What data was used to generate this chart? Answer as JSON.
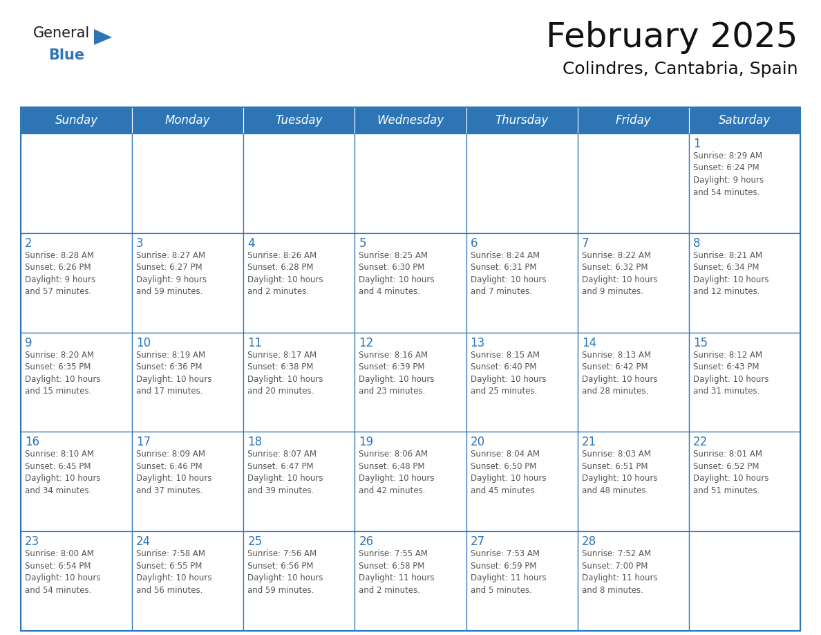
{
  "title": "February 2025",
  "subtitle": "Colindres, Cantabria, Spain",
  "header_bg": "#2E75B6",
  "header_text_color": "#FFFFFF",
  "cell_bg": "#FFFFFF",
  "cell_border_color": "#2E75B6",
  "day_number_color": "#2E75B6",
  "info_text_color": "#555555",
  "days_of_week": [
    "Sunday",
    "Monday",
    "Tuesday",
    "Wednesday",
    "Thursday",
    "Friday",
    "Saturday"
  ],
  "weeks": [
    [
      {
        "day": "",
        "info": ""
      },
      {
        "day": "",
        "info": ""
      },
      {
        "day": "",
        "info": ""
      },
      {
        "day": "",
        "info": ""
      },
      {
        "day": "",
        "info": ""
      },
      {
        "day": "",
        "info": ""
      },
      {
        "day": "1",
        "info": "Sunrise: 8:29 AM\nSunset: 6:24 PM\nDaylight: 9 hours\nand 54 minutes."
      }
    ],
    [
      {
        "day": "2",
        "info": "Sunrise: 8:28 AM\nSunset: 6:26 PM\nDaylight: 9 hours\nand 57 minutes."
      },
      {
        "day": "3",
        "info": "Sunrise: 8:27 AM\nSunset: 6:27 PM\nDaylight: 9 hours\nand 59 minutes."
      },
      {
        "day": "4",
        "info": "Sunrise: 8:26 AM\nSunset: 6:28 PM\nDaylight: 10 hours\nand 2 minutes."
      },
      {
        "day": "5",
        "info": "Sunrise: 8:25 AM\nSunset: 6:30 PM\nDaylight: 10 hours\nand 4 minutes."
      },
      {
        "day": "6",
        "info": "Sunrise: 8:24 AM\nSunset: 6:31 PM\nDaylight: 10 hours\nand 7 minutes."
      },
      {
        "day": "7",
        "info": "Sunrise: 8:22 AM\nSunset: 6:32 PM\nDaylight: 10 hours\nand 9 minutes."
      },
      {
        "day": "8",
        "info": "Sunrise: 8:21 AM\nSunset: 6:34 PM\nDaylight: 10 hours\nand 12 minutes."
      }
    ],
    [
      {
        "day": "9",
        "info": "Sunrise: 8:20 AM\nSunset: 6:35 PM\nDaylight: 10 hours\nand 15 minutes."
      },
      {
        "day": "10",
        "info": "Sunrise: 8:19 AM\nSunset: 6:36 PM\nDaylight: 10 hours\nand 17 minutes."
      },
      {
        "day": "11",
        "info": "Sunrise: 8:17 AM\nSunset: 6:38 PM\nDaylight: 10 hours\nand 20 minutes."
      },
      {
        "day": "12",
        "info": "Sunrise: 8:16 AM\nSunset: 6:39 PM\nDaylight: 10 hours\nand 23 minutes."
      },
      {
        "day": "13",
        "info": "Sunrise: 8:15 AM\nSunset: 6:40 PM\nDaylight: 10 hours\nand 25 minutes."
      },
      {
        "day": "14",
        "info": "Sunrise: 8:13 AM\nSunset: 6:42 PM\nDaylight: 10 hours\nand 28 minutes."
      },
      {
        "day": "15",
        "info": "Sunrise: 8:12 AM\nSunset: 6:43 PM\nDaylight: 10 hours\nand 31 minutes."
      }
    ],
    [
      {
        "day": "16",
        "info": "Sunrise: 8:10 AM\nSunset: 6:45 PM\nDaylight: 10 hours\nand 34 minutes."
      },
      {
        "day": "17",
        "info": "Sunrise: 8:09 AM\nSunset: 6:46 PM\nDaylight: 10 hours\nand 37 minutes."
      },
      {
        "day": "18",
        "info": "Sunrise: 8:07 AM\nSunset: 6:47 PM\nDaylight: 10 hours\nand 39 minutes."
      },
      {
        "day": "19",
        "info": "Sunrise: 8:06 AM\nSunset: 6:48 PM\nDaylight: 10 hours\nand 42 minutes."
      },
      {
        "day": "20",
        "info": "Sunrise: 8:04 AM\nSunset: 6:50 PM\nDaylight: 10 hours\nand 45 minutes."
      },
      {
        "day": "21",
        "info": "Sunrise: 8:03 AM\nSunset: 6:51 PM\nDaylight: 10 hours\nand 48 minutes."
      },
      {
        "day": "22",
        "info": "Sunrise: 8:01 AM\nSunset: 6:52 PM\nDaylight: 10 hours\nand 51 minutes."
      }
    ],
    [
      {
        "day": "23",
        "info": "Sunrise: 8:00 AM\nSunset: 6:54 PM\nDaylight: 10 hours\nand 54 minutes."
      },
      {
        "day": "24",
        "info": "Sunrise: 7:58 AM\nSunset: 6:55 PM\nDaylight: 10 hours\nand 56 minutes."
      },
      {
        "day": "25",
        "info": "Sunrise: 7:56 AM\nSunset: 6:56 PM\nDaylight: 10 hours\nand 59 minutes."
      },
      {
        "day": "26",
        "info": "Sunrise: 7:55 AM\nSunset: 6:58 PM\nDaylight: 11 hours\nand 2 minutes."
      },
      {
        "day": "27",
        "info": "Sunrise: 7:53 AM\nSunset: 6:59 PM\nDaylight: 11 hours\nand 5 minutes."
      },
      {
        "day": "28",
        "info": "Sunrise: 7:52 AM\nSunset: 7:00 PM\nDaylight: 11 hours\nand 8 minutes."
      },
      {
        "day": "",
        "info": ""
      }
    ]
  ],
  "logo_general_color": "#1a1a1a",
  "logo_blue_color": "#2E75B6",
  "logo_triangle_color": "#2E75B6",
  "title_fontsize": 36,
  "subtitle_fontsize": 18,
  "header_fontsize": 12,
  "day_number_fontsize": 12,
  "info_fontsize": 8.5
}
